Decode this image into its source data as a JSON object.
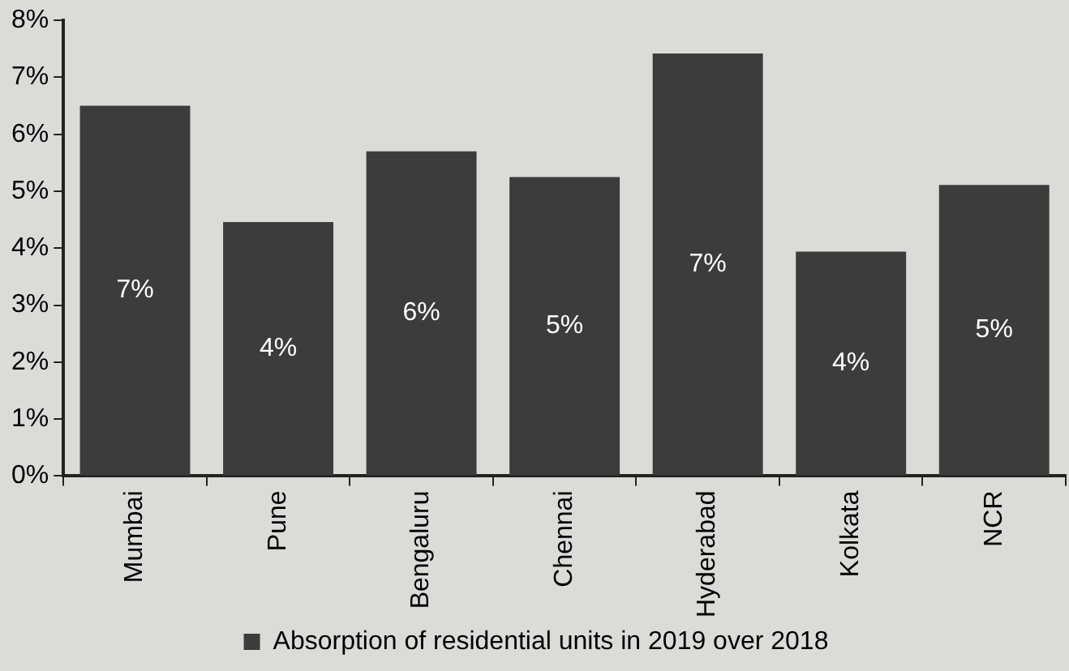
{
  "chart_data": {
    "type": "bar",
    "categories": [
      "Mumbai",
      "Pune",
      "Bengaluru",
      "Chennai",
      "Hyderabad",
      "Kolkata",
      "NCR"
    ],
    "series": [
      {
        "name": "Absorption of residential units in 2019 over 2018",
        "color": "#3c3c3b",
        "values": [
          6.5,
          4.46,
          5.7,
          5.25,
          7.42,
          3.94,
          5.11
        ],
        "value_labels": [
          "7%",
          "4%",
          "6%",
          "5%",
          "7%",
          "4%",
          "5%"
        ]
      }
    ],
    "ylim": [
      0,
      8
    ],
    "yticks": [
      {
        "value": 0,
        "label": "0%"
      },
      {
        "value": 1,
        "label": "1%"
      },
      {
        "value": 2,
        "label": "2%"
      },
      {
        "value": 3,
        "label": "3%"
      },
      {
        "value": 4,
        "label": "4%"
      },
      {
        "value": 5,
        "label": "5%"
      },
      {
        "value": 6,
        "label": "6%"
      },
      {
        "value": 7,
        "label": "7%"
      },
      {
        "value": 8,
        "label": "8%"
      }
    ],
    "grid": false,
    "legend": "bottom"
  }
}
